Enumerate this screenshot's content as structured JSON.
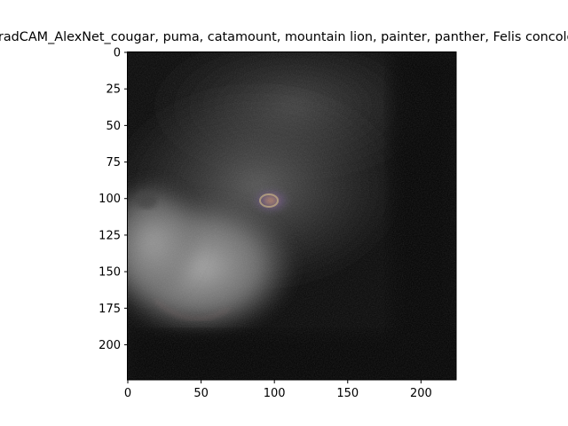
{
  "figure": {
    "title": "GradCAM_AlexNet_cougar, puma, catamount, mountain lion, painter, panther, Felis concolor",
    "image_description_name": "guided-gradcam-cougar-image"
  },
  "axes": {
    "xlim": [
      0,
      224
    ],
    "ylim": [
      224,
      0
    ],
    "xticks": [
      0,
      50,
      100,
      150,
      200
    ],
    "yticks": [
      0,
      25,
      50,
      75,
      100,
      125,
      150,
      175,
      200
    ]
  },
  "colors": {
    "background": "#ffffff",
    "image_dark": "#050505",
    "image_mid": "#3a3a3a",
    "image_light": "#9a9a9a",
    "highlight_eye": "#c9a070"
  }
}
